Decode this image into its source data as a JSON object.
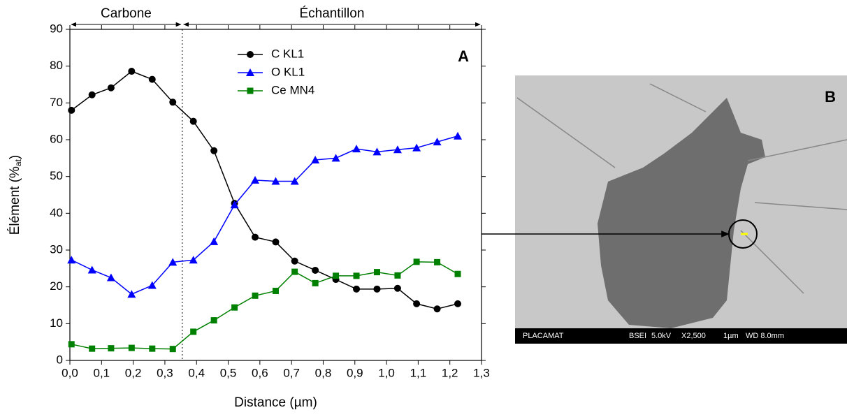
{
  "chart_data": {
    "type": "line",
    "xlabel": "Distance (µm)",
    "ylabel": {
      "main": "Élément (%",
      "sub": "at",
      "end": ")"
    },
    "panel_label": "A",
    "regions": [
      "Carbone",
      "Échantillon"
    ],
    "divider_x": 0.355,
    "x": [
      0.005,
      0.07,
      0.13,
      0.195,
      0.26,
      0.325,
      0.39,
      0.455,
      0.52,
      0.585,
      0.65,
      0.71,
      0.775,
      0.84,
      0.905,
      0.97,
      1.035,
      1.095,
      1.16,
      1.225
    ],
    "series": [
      {
        "name": "C KL1",
        "color": "#000000",
        "marker": "circle",
        "values": [
          68,
          72.2,
          74.1,
          78.6,
          76.4,
          70.2,
          65,
          57,
          42.7,
          33.5,
          32.2,
          27,
          24.5,
          22,
          19.4,
          19.4,
          19.6,
          15.4,
          14,
          15.4
        ]
      },
      {
        "name": "O KL1",
        "color": "#0000ff",
        "marker": "triangle",
        "values": [
          27.3,
          24.6,
          22.5,
          18,
          20.4,
          26.7,
          27.3,
          32.3,
          42.3,
          49,
          48.7,
          48.7,
          54.5,
          55,
          57.5,
          56.7,
          57.3,
          57.8,
          59.4,
          61
        ]
      },
      {
        "name": "Ce MN4",
        "color": "#008000",
        "marker": "square",
        "values": [
          4.4,
          3.2,
          3.3,
          3.4,
          3.2,
          3.1,
          7.8,
          10.9,
          14.4,
          17.6,
          18.9,
          24.1,
          21,
          23,
          23,
          24,
          23.1,
          26.8,
          26.7,
          23.5
        ]
      }
    ],
    "xlim": [
      0,
      1.3
    ],
    "xticks": [
      {
        "value": 0,
        "label": "0,0"
      },
      {
        "value": 0.1,
        "label": "0,1"
      },
      {
        "value": 0.2,
        "label": "0,2"
      },
      {
        "value": 0.3,
        "label": "0,3"
      },
      {
        "value": 0.4,
        "label": "0,4"
      },
      {
        "value": 0.5,
        "label": "0,5"
      },
      {
        "value": 0.6,
        "label": "0,6"
      },
      {
        "value": 0.7,
        "label": "0,7"
      },
      {
        "value": 0.8,
        "label": "0,8"
      },
      {
        "value": 0.9,
        "label": "0,9"
      },
      {
        "value": 1.0,
        "label": "1,0"
      },
      {
        "value": 1.1,
        "label": "1,1"
      },
      {
        "value": 1.2,
        "label": "1,2"
      },
      {
        "value": 1.3,
        "label": "1,3"
      }
    ],
    "ylim": [
      0,
      90
    ],
    "yticks": [
      0,
      10,
      20,
      30,
      40,
      50,
      60,
      70,
      80,
      90
    ],
    "grid": false
  },
  "image": {
    "panel_label": "B",
    "footer": [
      "PLACAMAT",
      "BSEI",
      "5.0kV",
      "X2,500",
      "1µm",
      "WD 8.0mm"
    ]
  }
}
